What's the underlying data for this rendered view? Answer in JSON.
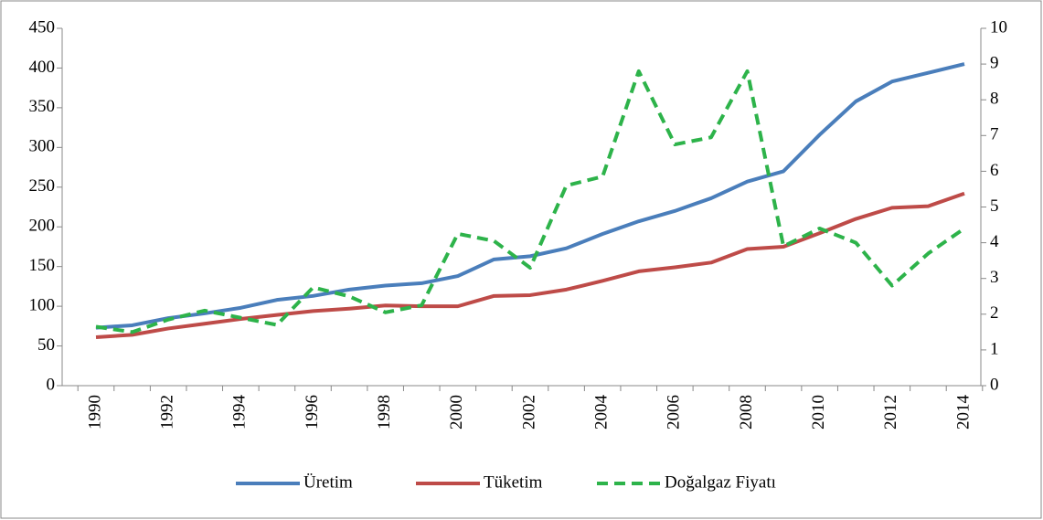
{
  "chart_data": {
    "type": "line",
    "categories": [
      "1990",
      null,
      "1992",
      null,
      "1994",
      null,
      "1996",
      null,
      "1998",
      null,
      "2000",
      null,
      "2002",
      null,
      "2004",
      null,
      "2006",
      null,
      "2008",
      null,
      "2010",
      null,
      "2012",
      null,
      "2014"
    ],
    "series": [
      {
        "name": "Üretim",
        "color": "#4a7ebb",
        "style": "solid",
        "values": [
          73,
          76,
          85,
          91,
          98,
          108,
          113,
          121,
          126,
          129,
          138,
          159,
          163,
          173,
          191,
          207,
          220,
          236,
          257,
          270,
          316,
          358,
          383,
          394,
          405
        ]
      },
      {
        "name": "Tüketim",
        "color": "#be4b48",
        "style": "solid",
        "values": [
          61,
          64,
          72,
          78,
          84,
          89,
          94,
          97,
          101,
          100,
          100,
          113,
          114,
          121,
          132,
          144,
          149,
          155,
          172,
          175,
          192,
          210,
          224,
          226,
          242
        ]
      },
      {
        "name": "Doğalgaz Fiyatı",
        "color": "#2db34a",
        "style": "dashed",
        "axis": "y2",
        "values": [
          1.65,
          1.5,
          1.85,
          2.1,
          1.9,
          1.7,
          2.75,
          2.5,
          2.05,
          2.25,
          4.25,
          4.05,
          3.3,
          5.6,
          5.85,
          8.8,
          6.75,
          6.95,
          8.8,
          3.9,
          4.4,
          4.0,
          2.8,
          3.7,
          4.4
        ]
      }
    ],
    "ylim": [
      0,
      450
    ],
    "yticks": [
      0,
      50,
      100,
      150,
      200,
      250,
      300,
      350,
      400,
      450
    ],
    "y2lim": [
      0,
      10
    ],
    "y2ticks": [
      0,
      1,
      2,
      3,
      4,
      5,
      6,
      7,
      8,
      9,
      10
    ],
    "legend": "bottom"
  }
}
